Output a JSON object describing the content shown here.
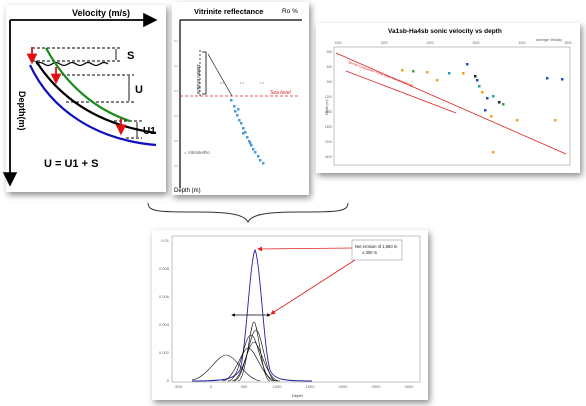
{
  "velocity_panel": {
    "title": "Velocity (m/s)",
    "y_axis_label": "Depth(m)",
    "label_s": "S",
    "label_u": "U",
    "label_u1": "U1",
    "equation": "U = U1 + S",
    "colors": {
      "black": "#000000",
      "green": "#1a8a1a",
      "blue": "#1010c0",
      "red": "#e01010"
    }
  },
  "vitrinite_panel": {
    "title": "Vitrinite reflectance",
    "ro_label": "Ro %",
    "depth_label": "Depth (m)",
    "annotation_red": "Sea level",
    "annotation_vertical": "1800m Erosion",
    "legend": "= Vitrinite/Ro"
  },
  "sonic_panel": {
    "title": "Va1sb-Ha4sb sonic velocity vs depth",
    "top_right_label": "Average Velocity",
    "y_axis_label": "Depth (m)",
    "trend_label": "Normal Compaction Trend (after Schulz-Nyhaug)",
    "x_ticks": [
      "1000",
      "1500",
      "2000",
      "2500",
      "3000",
      "3500"
    ],
    "y_ticks": [
      "300",
      "600",
      "900",
      "1200",
      "1500",
      "1800",
      "2100",
      "2400"
    ],
    "colors": {
      "trend": "#e02020",
      "point_orange": "#f0a020",
      "point_blue": "#2050c0",
      "point_teal": "#20a0a0",
      "point_green": "#40a040",
      "point_black": "#202020"
    }
  },
  "distribution_panel": {
    "annotation": "Net erosion of 1,650 m ± 300 m",
    "x_axis_label": "Depth",
    "x_ticks": [
      "-500",
      "0",
      "500",
      "1000",
      "1500",
      "2000",
      "2500",
      "3000"
    ],
    "y_ticks": [
      "0.01",
      "0.008",
      "0.006",
      "0.004",
      "0.002",
      "0"
    ],
    "colors": {
      "envelope": "#2020a0",
      "arrow": "#e02020",
      "curves": "#000000"
    }
  }
}
